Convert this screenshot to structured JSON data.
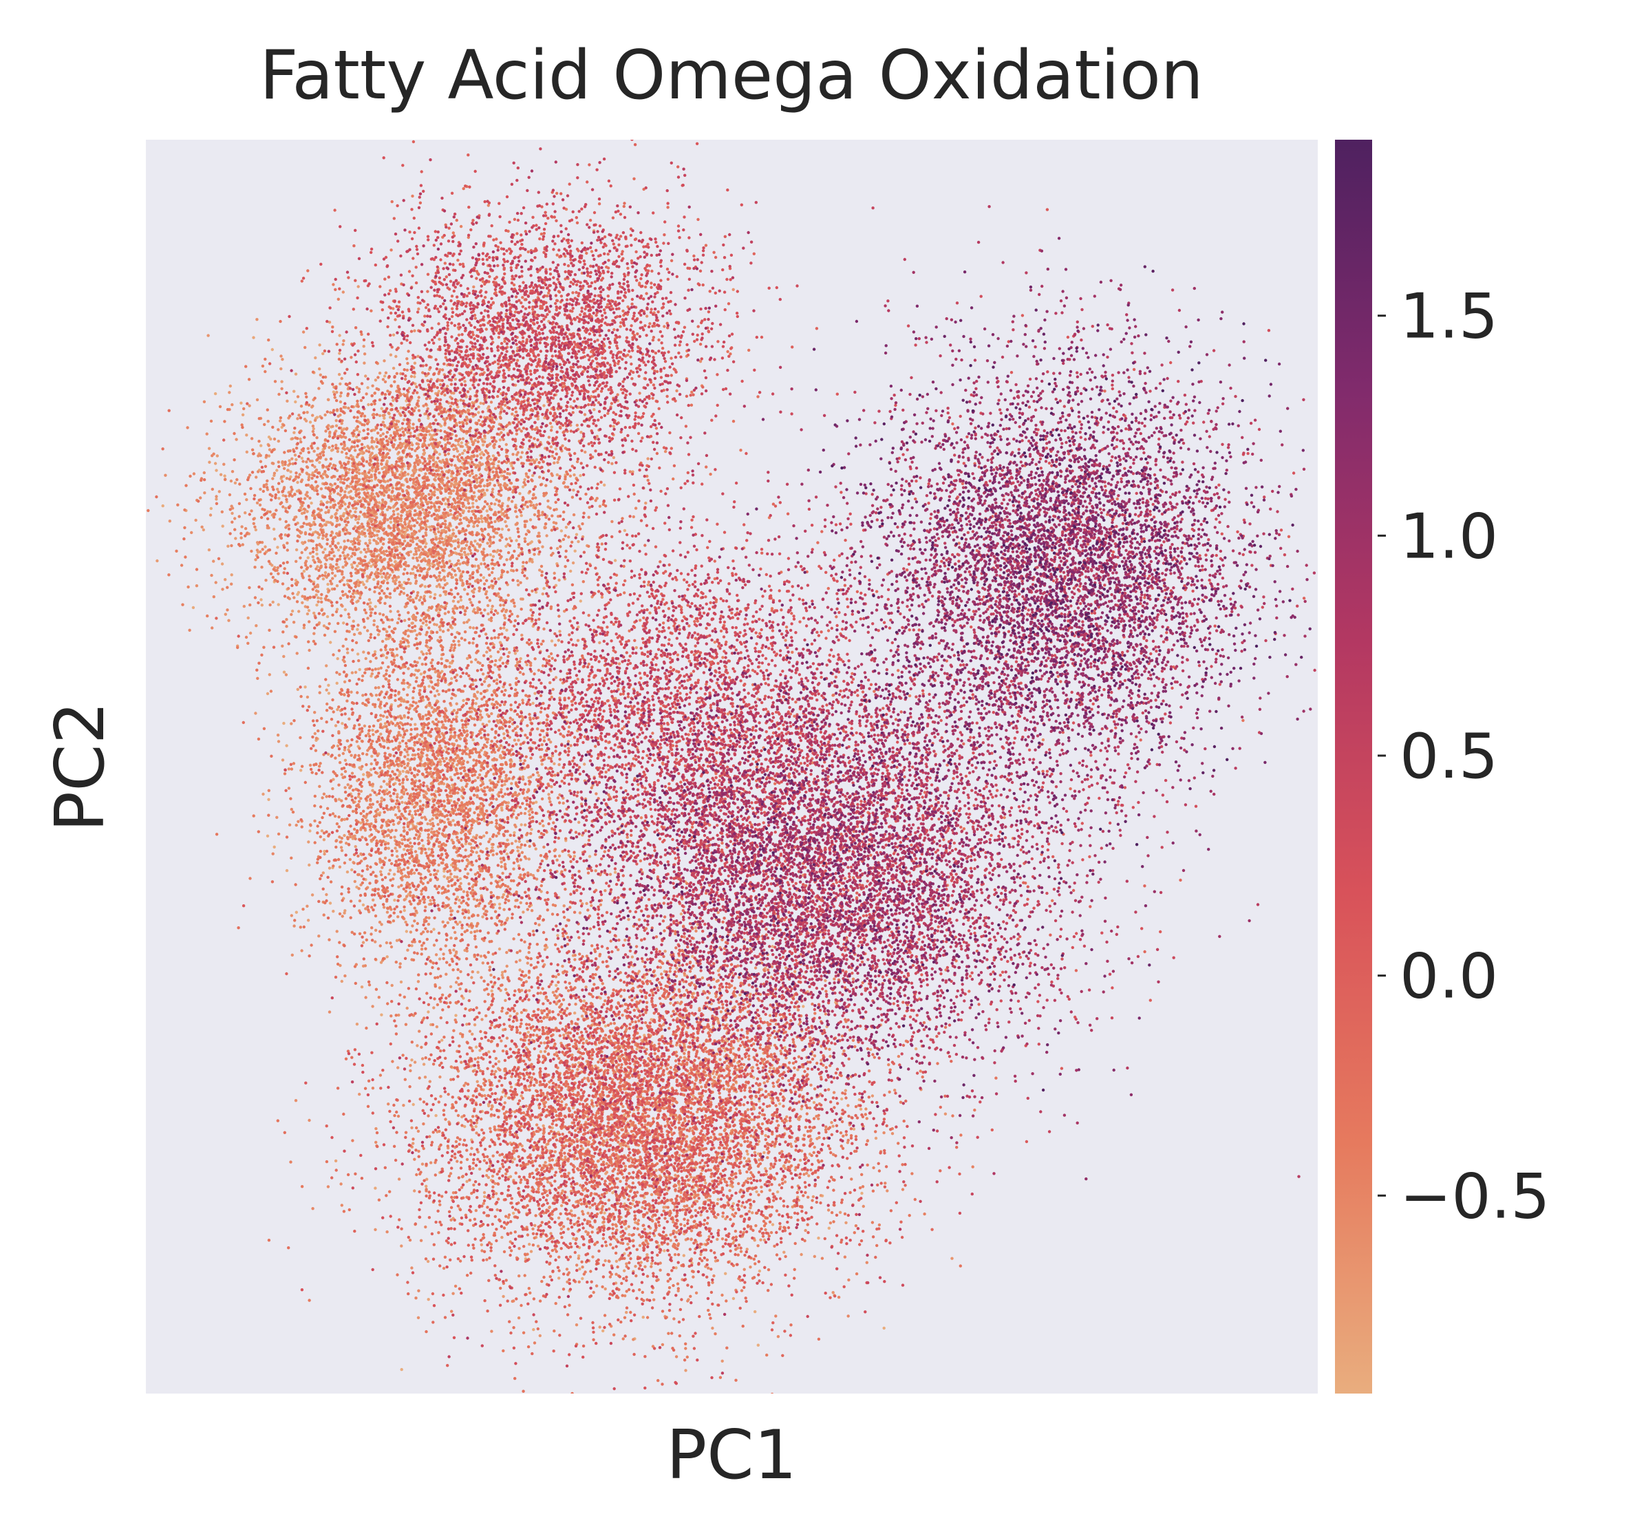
{
  "chart_data": {
    "type": "scatter",
    "title": "Fatty Acid Omega Oxidation",
    "xlabel": "PC1",
    "ylabel": "PC2",
    "x_ticks": [],
    "y_ticks": [],
    "grid": false,
    "background_color": "#eaeaf2",
    "xlim": [
      0,
      100
    ],
    "ylim": [
      0,
      100
    ],
    "colorbar": {
      "colormap": "flare",
      "range": [
        -0.95,
        1.9
      ],
      "ticks": [
        -0.5,
        0.0,
        0.5,
        1.0,
        1.5
      ],
      "tick_labels": [
        "−0.5",
        "0.0",
        "0.5",
        "1.0",
        "1.5"
      ],
      "color_stops": [
        "#e9ad7e",
        "#e67a5e",
        "#d8525a",
        "#b33862",
        "#812b6c",
        "#4f2160"
      ]
    },
    "clusters": [
      {
        "cx": 22,
        "cy": 71,
        "sx": 7,
        "sy": 5.5,
        "weight": 0.12,
        "mean": -0.55,
        "sd": 0.22
      },
      {
        "cx": 34,
        "cy": 84,
        "sx": 7,
        "sy": 5.5,
        "weight": 0.09,
        "mean": 0.25,
        "sd": 0.3
      },
      {
        "cx": 25,
        "cy": 48,
        "sx": 5.5,
        "sy": 7,
        "weight": 0.1,
        "mean": -0.45,
        "sd": 0.25
      },
      {
        "cx": 42,
        "cy": 22,
        "sx": 9,
        "sy": 7,
        "weight": 0.22,
        "mean": -0.2,
        "sd": 0.35
      },
      {
        "cx": 58,
        "cy": 42,
        "sx": 10,
        "sy": 8,
        "weight": 0.22,
        "mean": 0.75,
        "sd": 0.4
      },
      {
        "cx": 78,
        "cy": 66,
        "sx": 8,
        "sy": 8,
        "weight": 0.17,
        "mean": 1.0,
        "sd": 0.4
      },
      {
        "cx": 45,
        "cy": 55,
        "sx": 8,
        "sy": 7,
        "weight": 0.08,
        "mean": 0.3,
        "sd": 0.3
      }
    ],
    "n_points": 42000
  }
}
